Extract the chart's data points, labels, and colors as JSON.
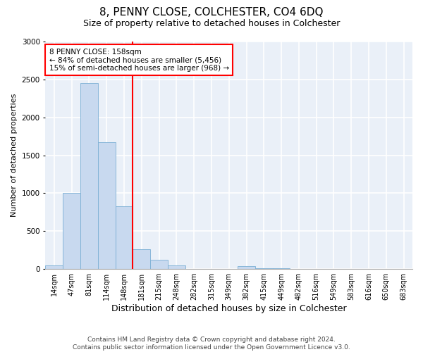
{
  "title": "8, PENNY CLOSE, COLCHESTER, CO4 6DQ",
  "subtitle": "Size of property relative to detached houses in Colchester",
  "xlabel": "Distribution of detached houses by size in Colchester",
  "ylabel": "Number of detached properties",
  "categories": [
    "14sqm",
    "47sqm",
    "81sqm",
    "114sqm",
    "148sqm",
    "181sqm",
    "215sqm",
    "248sqm",
    "282sqm",
    "315sqm",
    "349sqm",
    "382sqm",
    "415sqm",
    "449sqm",
    "482sqm",
    "516sqm",
    "549sqm",
    "583sqm",
    "616sqm",
    "650sqm",
    "683sqm"
  ],
  "values": [
    50,
    1000,
    2450,
    1670,
    830,
    260,
    125,
    50,
    0,
    0,
    0,
    35,
    15,
    15,
    0,
    0,
    0,
    0,
    0,
    0,
    0
  ],
  "bar_color": "#c8d9ef",
  "bar_edge_color": "#7bafd4",
  "background_color": "#eaf0f8",
  "grid_color": "#ffffff",
  "ylim": [
    0,
    3000
  ],
  "yticks": [
    0,
    500,
    1000,
    1500,
    2000,
    2500,
    3000
  ],
  "red_line_index": 5,
  "annotation_title": "8 PENNY CLOSE: 158sqm",
  "annotation_line1": "← 84% of detached houses are smaller (5,456)",
  "annotation_line2": "15% of semi-detached houses are larger (968) →",
  "footnote1": "Contains HM Land Registry data © Crown copyright and database right 2024.",
  "footnote2": "Contains public sector information licensed under the Open Government Licence v3.0.",
  "title_fontsize": 11,
  "subtitle_fontsize": 9,
  "xlabel_fontsize": 9,
  "ylabel_fontsize": 8,
  "tick_fontsize": 7,
  "annot_fontsize": 7.5,
  "footnote_fontsize": 6.5
}
